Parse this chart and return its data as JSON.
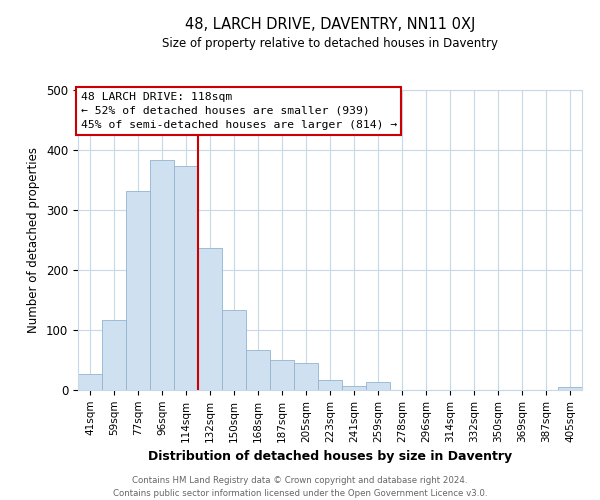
{
  "title": "48, LARCH DRIVE, DAVENTRY, NN11 0XJ",
  "subtitle": "Size of property relative to detached houses in Daventry",
  "xlabel": "Distribution of detached houses by size in Daventry",
  "ylabel": "Number of detached properties",
  "bar_labels": [
    "41sqm",
    "59sqm",
    "77sqm",
    "96sqm",
    "114sqm",
    "132sqm",
    "150sqm",
    "168sqm",
    "187sqm",
    "205sqm",
    "223sqm",
    "241sqm",
    "259sqm",
    "278sqm",
    "296sqm",
    "314sqm",
    "332sqm",
    "350sqm",
    "369sqm",
    "387sqm",
    "405sqm"
  ],
  "bar_values": [
    27,
    117,
    331,
    384,
    374,
    236,
    133,
    66,
    50,
    45,
    17,
    6,
    13,
    0,
    0,
    0,
    0,
    0,
    0,
    0,
    5
  ],
  "bar_color": "#cfe0f0",
  "bar_edge_color": "#90b4d0",
  "vline_index": 4,
  "vline_color": "#cc0000",
  "ylim": [
    0,
    500
  ],
  "annotation_title": "48 LARCH DRIVE: 118sqm",
  "annotation_line1": "← 52% of detached houses are smaller (939)",
  "annotation_line2": "45% of semi-detached houses are larger (814) →",
  "footer_line1": "Contains HM Land Registry data © Crown copyright and database right 2024.",
  "footer_line2": "Contains public sector information licensed under the Open Government Licence v3.0.",
  "background_color": "#ffffff",
  "grid_color": "#c8d8e8"
}
